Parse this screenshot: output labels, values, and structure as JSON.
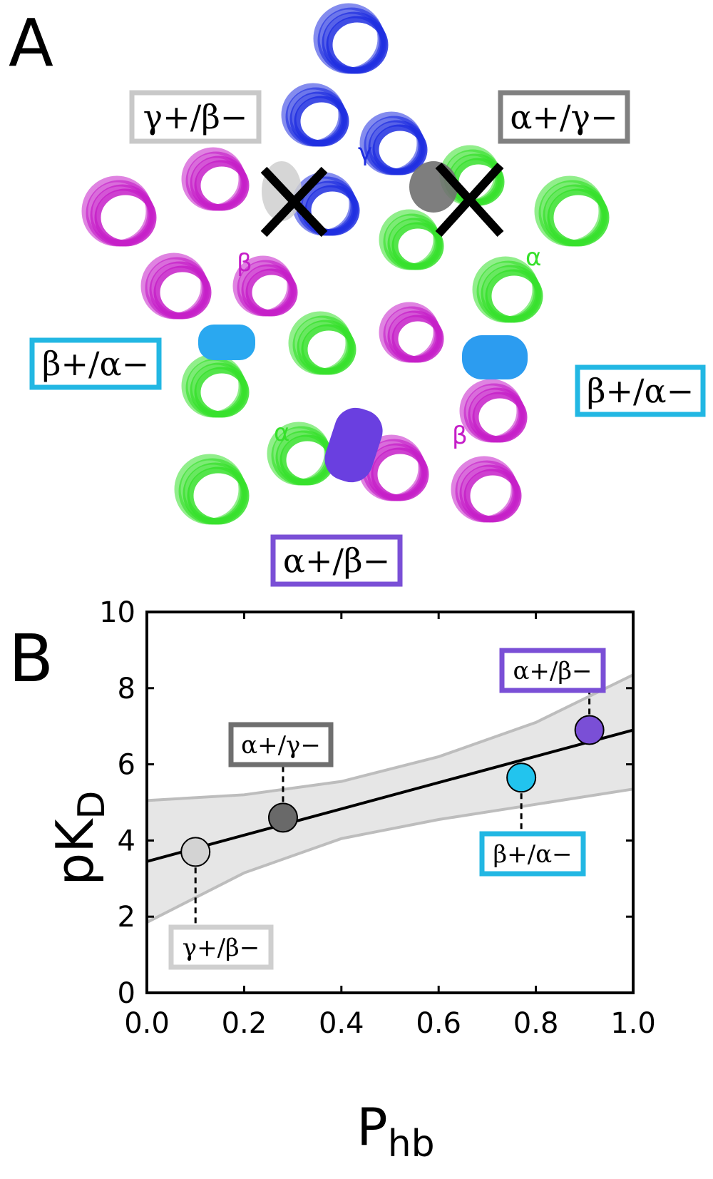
{
  "panel_a": {
    "letter": "A",
    "subunit_labels": {
      "gamma": "γ",
      "alpha_right": "α",
      "beta_left": "β",
      "alpha_bottom": "α",
      "beta_bottom": "β"
    },
    "binding_sites": [
      {
        "id": "g_b",
        "label": "γ+/β−",
        "color": "#c8c8c8",
        "blocked": true
      },
      {
        "id": "a_g",
        "label": "α+/γ−",
        "color": "#808080",
        "blocked": true
      },
      {
        "id": "b_a_left",
        "label": "β+/α−",
        "color": "#22b7e3",
        "blocked": false
      },
      {
        "id": "b_a_right",
        "label": "β+/α−",
        "color": "#22b7e3",
        "blocked": false
      },
      {
        "id": "a_b",
        "label": "α+/β−",
        "color": "#7a4fd6",
        "blocked": false
      }
    ],
    "subunit_colors": {
      "alpha": "#36e02b",
      "beta": "#c51ec8",
      "gamma": "#1f2ee0"
    }
  },
  "panel_b": {
    "letter": "B",
    "xlabel": "P",
    "xlabel_sub": "hb",
    "ylabel": "pK",
    "ylabel_sub": "D"
  },
  "chart_data": {
    "type": "scatter",
    "title": "",
    "xlabel": "Phb",
    "ylabel": "pKD",
    "xlim": [
      0.0,
      1.0
    ],
    "ylim": [
      0,
      10
    ],
    "xticks": [
      "0.0",
      "0.2",
      "0.4",
      "0.6",
      "0.8",
      "1.0"
    ],
    "yticks": [
      "0",
      "2",
      "4",
      "6",
      "8",
      "10"
    ],
    "grid": false,
    "points": [
      {
        "label": "γ+/β−",
        "x": 0.1,
        "y": 3.7,
        "color": "#d3d3d3"
      },
      {
        "label": "α+/γ−",
        "x": 0.28,
        "y": 4.6,
        "color": "#696969"
      },
      {
        "label": "β+/α−",
        "x": 0.77,
        "y": 5.65,
        "color": "#22c4ee"
      },
      {
        "label": "α+/β−",
        "x": 0.91,
        "y": 6.9,
        "color": "#7a4fd6"
      }
    ],
    "fit_line": {
      "x": [
        0.0,
        1.0
      ],
      "y": [
        3.45,
        6.9
      ]
    },
    "confidence_band": {
      "x": [
        0.0,
        0.2,
        0.4,
        0.6,
        0.8,
        1.0
      ],
      "upper": [
        5.05,
        5.2,
        5.55,
        6.2,
        7.1,
        8.35
      ],
      "lower": [
        1.85,
        3.15,
        4.05,
        4.55,
        4.95,
        5.35
      ]
    }
  }
}
